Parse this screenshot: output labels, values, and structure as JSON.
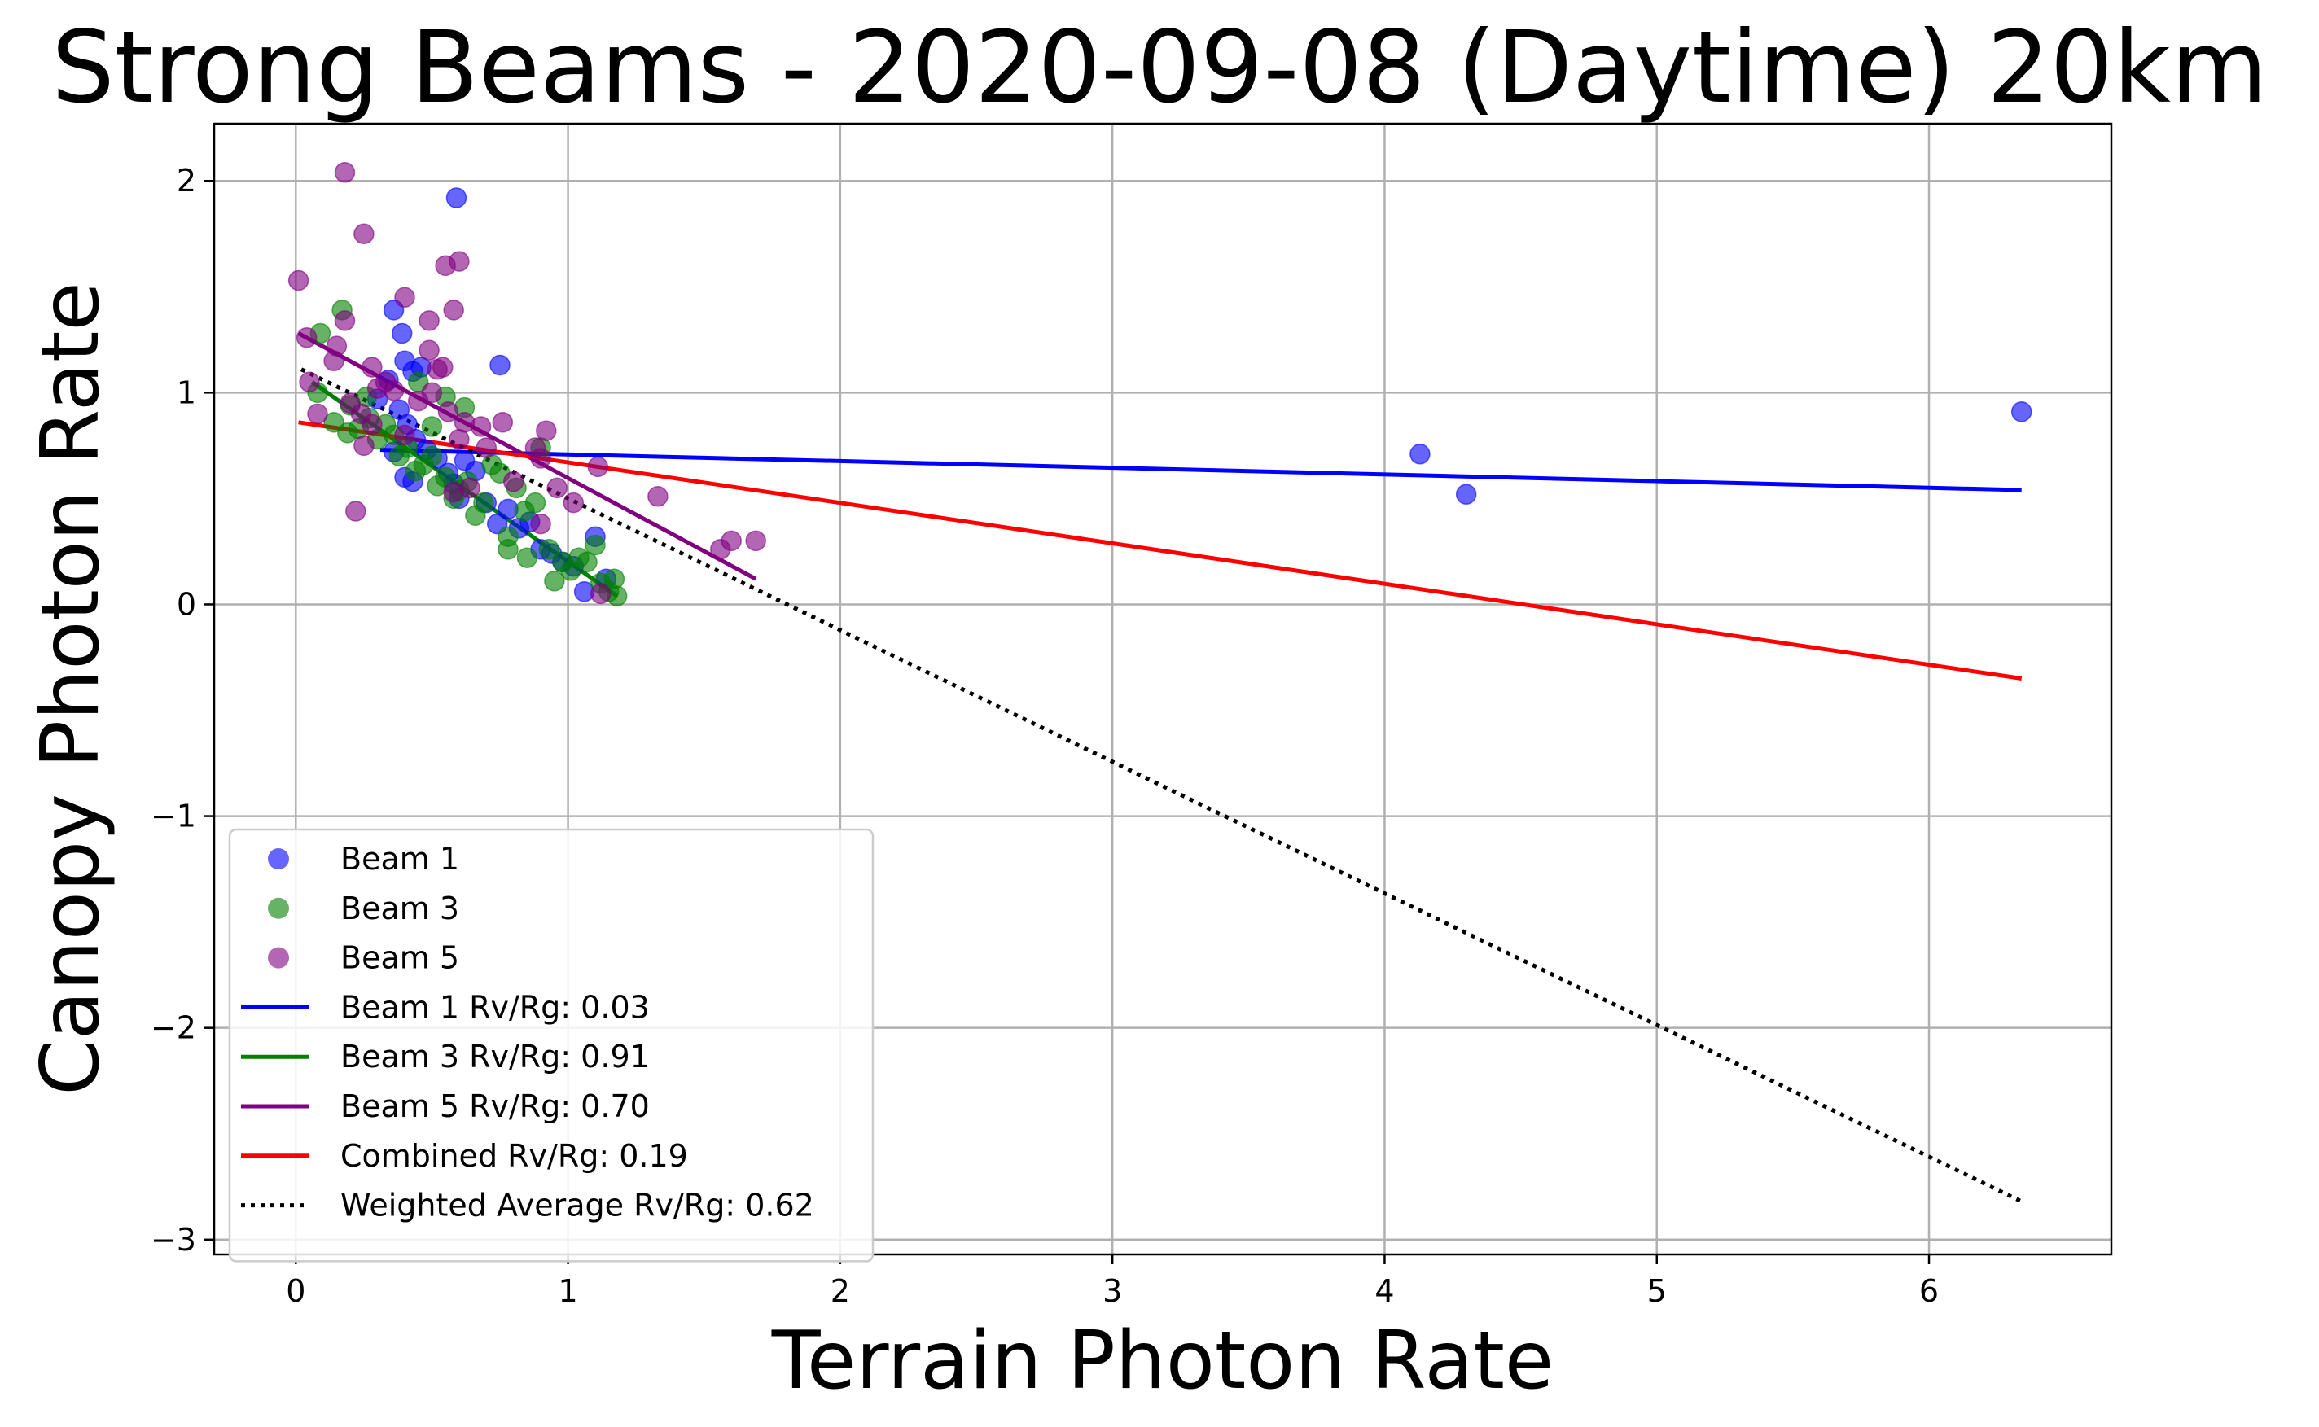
{
  "chart_data": {
    "type": "scatter",
    "title": "Strong Beams - 2020-09-08 (Daytime) 20km",
    "xlabel": "Terrain Photon Rate",
    "ylabel": "Canopy Photon Rate",
    "xlim": [
      -0.3,
      6.67
    ],
    "ylim": [
      -3.07,
      2.27
    ],
    "xticks": [
      0,
      1,
      2,
      3,
      4,
      5,
      6
    ],
    "yticks": [
      -3,
      -2,
      -1,
      0,
      1,
      2
    ],
    "xtick_labels": [
      "0",
      "1",
      "2",
      "3",
      "4",
      "5",
      "6"
    ],
    "ytick_labels": [
      "−3",
      "−2",
      "−1",
      "0",
      "1",
      "2"
    ],
    "grid": true,
    "legend_position": "lower-left",
    "scatter_series": [
      {
        "name": "Beam 1",
        "color": "#0000ff",
        "points": [
          [
            0.59,
            1.92
          ],
          [
            0.36,
            1.39
          ],
          [
            0.39,
            1.28
          ],
          [
            0.43,
            1.1
          ],
          [
            0.46,
            1.12
          ],
          [
            0.4,
            1.15
          ],
          [
            0.34,
            1.06
          ],
          [
            0.3,
            0.97
          ],
          [
            0.38,
            0.92
          ],
          [
            0.41,
            0.85
          ],
          [
            0.44,
            0.78
          ],
          [
            0.36,
            0.72
          ],
          [
            0.4,
            0.6
          ],
          [
            0.43,
            0.58
          ],
          [
            0.48,
            0.73
          ],
          [
            0.52,
            0.69
          ],
          [
            0.56,
            0.62
          ],
          [
            0.58,
            0.57
          ],
          [
            0.6,
            0.5
          ],
          [
            0.62,
            0.68
          ],
          [
            0.66,
            0.63
          ],
          [
            0.7,
            0.48
          ],
          [
            0.74,
            0.38
          ],
          [
            0.75,
            1.13
          ],
          [
            0.78,
            0.45
          ],
          [
            0.82,
            0.36
          ],
          [
            0.86,
            0.39
          ],
          [
            0.9,
            0.26
          ],
          [
            0.94,
            0.24
          ],
          [
            0.98,
            0.2
          ],
          [
            1.02,
            0.18
          ],
          [
            1.06,
            0.06
          ],
          [
            1.1,
            0.32
          ],
          [
            1.14,
            0.12
          ],
          [
            4.13,
            0.71
          ],
          [
            4.3,
            0.52
          ],
          [
            6.34,
            0.91
          ]
        ]
      },
      {
        "name": "Beam 3",
        "color": "#008000",
        "points": [
          [
            0.09,
            1.28
          ],
          [
            0.17,
            1.39
          ],
          [
            0.08,
            1.0
          ],
          [
            0.14,
            0.86
          ],
          [
            0.19,
            0.81
          ],
          [
            0.23,
            0.83
          ],
          [
            0.27,
            0.88
          ],
          [
            0.3,
            0.78
          ],
          [
            0.33,
            0.85
          ],
          [
            0.36,
            0.8
          ],
          [
            0.38,
            0.7
          ],
          [
            0.41,
            0.74
          ],
          [
            0.44,
            0.63
          ],
          [
            0.47,
            0.66
          ],
          [
            0.5,
            0.7
          ],
          [
            0.52,
            0.56
          ],
          [
            0.55,
            0.6
          ],
          [
            0.58,
            0.5
          ],
          [
            0.6,
            0.54
          ],
          [
            0.63,
            0.58
          ],
          [
            0.66,
            0.42
          ],
          [
            0.69,
            0.48
          ],
          [
            0.72,
            0.66
          ],
          [
            0.75,
            0.62
          ],
          [
            0.78,
            0.32
          ],
          [
            0.78,
            0.26
          ],
          [
            0.81,
            0.55
          ],
          [
            0.84,
            0.44
          ],
          [
            0.85,
            0.22
          ],
          [
            0.88,
            0.48
          ],
          [
            0.9,
            0.74
          ],
          [
            0.93,
            0.26
          ],
          [
            0.95,
            0.11
          ],
          [
            0.98,
            0.2
          ],
          [
            1.01,
            0.16
          ],
          [
            1.04,
            0.22
          ],
          [
            1.07,
            0.2
          ],
          [
            1.1,
            0.28
          ],
          [
            1.12,
            0.1
          ],
          [
            1.15,
            0.06
          ],
          [
            1.17,
            0.12
          ],
          [
            1.18,
            0.04
          ],
          [
            0.62,
            0.93
          ],
          [
            0.45,
            1.05
          ],
          [
            0.55,
            0.98
          ],
          [
            0.26,
            0.98
          ],
          [
            0.2,
            0.94
          ],
          [
            0.5,
            0.84
          ]
        ]
      },
      {
        "name": "Beam 5",
        "color": "#800080",
        "points": [
          [
            0.18,
            2.04
          ],
          [
            0.25,
            1.75
          ],
          [
            0.01,
            1.53
          ],
          [
            0.6,
            1.62
          ],
          [
            0.55,
            1.6
          ],
          [
            0.58,
            1.39
          ],
          [
            0.4,
            1.45
          ],
          [
            0.49,
            1.34
          ],
          [
            0.18,
            1.34
          ],
          [
            0.04,
            1.26
          ],
          [
            0.14,
            1.15
          ],
          [
            0.15,
            1.22
          ],
          [
            0.28,
            1.12
          ],
          [
            0.52,
            1.11
          ],
          [
            0.54,
            1.12
          ],
          [
            0.49,
            1.2
          ],
          [
            0.05,
            1.05
          ],
          [
            0.3,
            1.02
          ],
          [
            0.33,
            1.05
          ],
          [
            0.36,
            1.01
          ],
          [
            0.45,
            0.96
          ],
          [
            0.5,
            1.0
          ],
          [
            0.08,
            0.9
          ],
          [
            0.2,
            0.95
          ],
          [
            0.24,
            0.9
          ],
          [
            0.28,
            0.85
          ],
          [
            0.56,
            0.91
          ],
          [
            0.62,
            0.86
          ],
          [
            0.68,
            0.84
          ],
          [
            0.76,
            0.86
          ],
          [
            0.92,
            0.82
          ],
          [
            0.25,
            0.75
          ],
          [
            0.4,
            0.8
          ],
          [
            0.6,
            0.78
          ],
          [
            0.7,
            0.74
          ],
          [
            0.88,
            0.74
          ],
          [
            0.9,
            0.69
          ],
          [
            0.58,
            0.53
          ],
          [
            0.64,
            0.55
          ],
          [
            0.8,
            0.58
          ],
          [
            0.96,
            0.55
          ],
          [
            1.02,
            0.48
          ],
          [
            1.11,
            0.65
          ],
          [
            1.33,
            0.51
          ],
          [
            0.22,
            0.44
          ],
          [
            0.9,
            0.38
          ],
          [
            1.56,
            0.26
          ],
          [
            1.6,
            0.3
          ],
          [
            1.69,
            0.3
          ],
          [
            1.12,
            0.05
          ]
        ]
      }
    ],
    "line_series": [
      {
        "name": "Beam 1 Rv/Rg: 0.03",
        "color": "#0000ff",
        "dash": "solid",
        "points": [
          [
            0.31,
            0.73
          ],
          [
            6.34,
            0.54
          ]
        ]
      },
      {
        "name": "Beam 3 Rv/Rg: 0.91",
        "color": "#008000",
        "dash": "solid",
        "points": [
          [
            0.06,
            1.05
          ],
          [
            1.18,
            0.04
          ]
        ]
      },
      {
        "name": "Beam 5 Rv/Rg: 0.70",
        "color": "#800080",
        "dash": "solid",
        "points": [
          [
            0.01,
            1.28
          ],
          [
            1.69,
            0.12
          ]
        ]
      },
      {
        "name": "Combined Rv/Rg: 0.19",
        "color": "#ff0000",
        "dash": "solid",
        "points": [
          [
            0.01,
            0.86
          ],
          [
            6.34,
            -0.35
          ]
        ]
      },
      {
        "name": "Weighted Average Rv/Rg: 0.62",
        "color": "#000000",
        "dash": "dotted",
        "points": [
          [
            0.02,
            1.11
          ],
          [
            6.34,
            -2.82
          ]
        ]
      }
    ]
  }
}
